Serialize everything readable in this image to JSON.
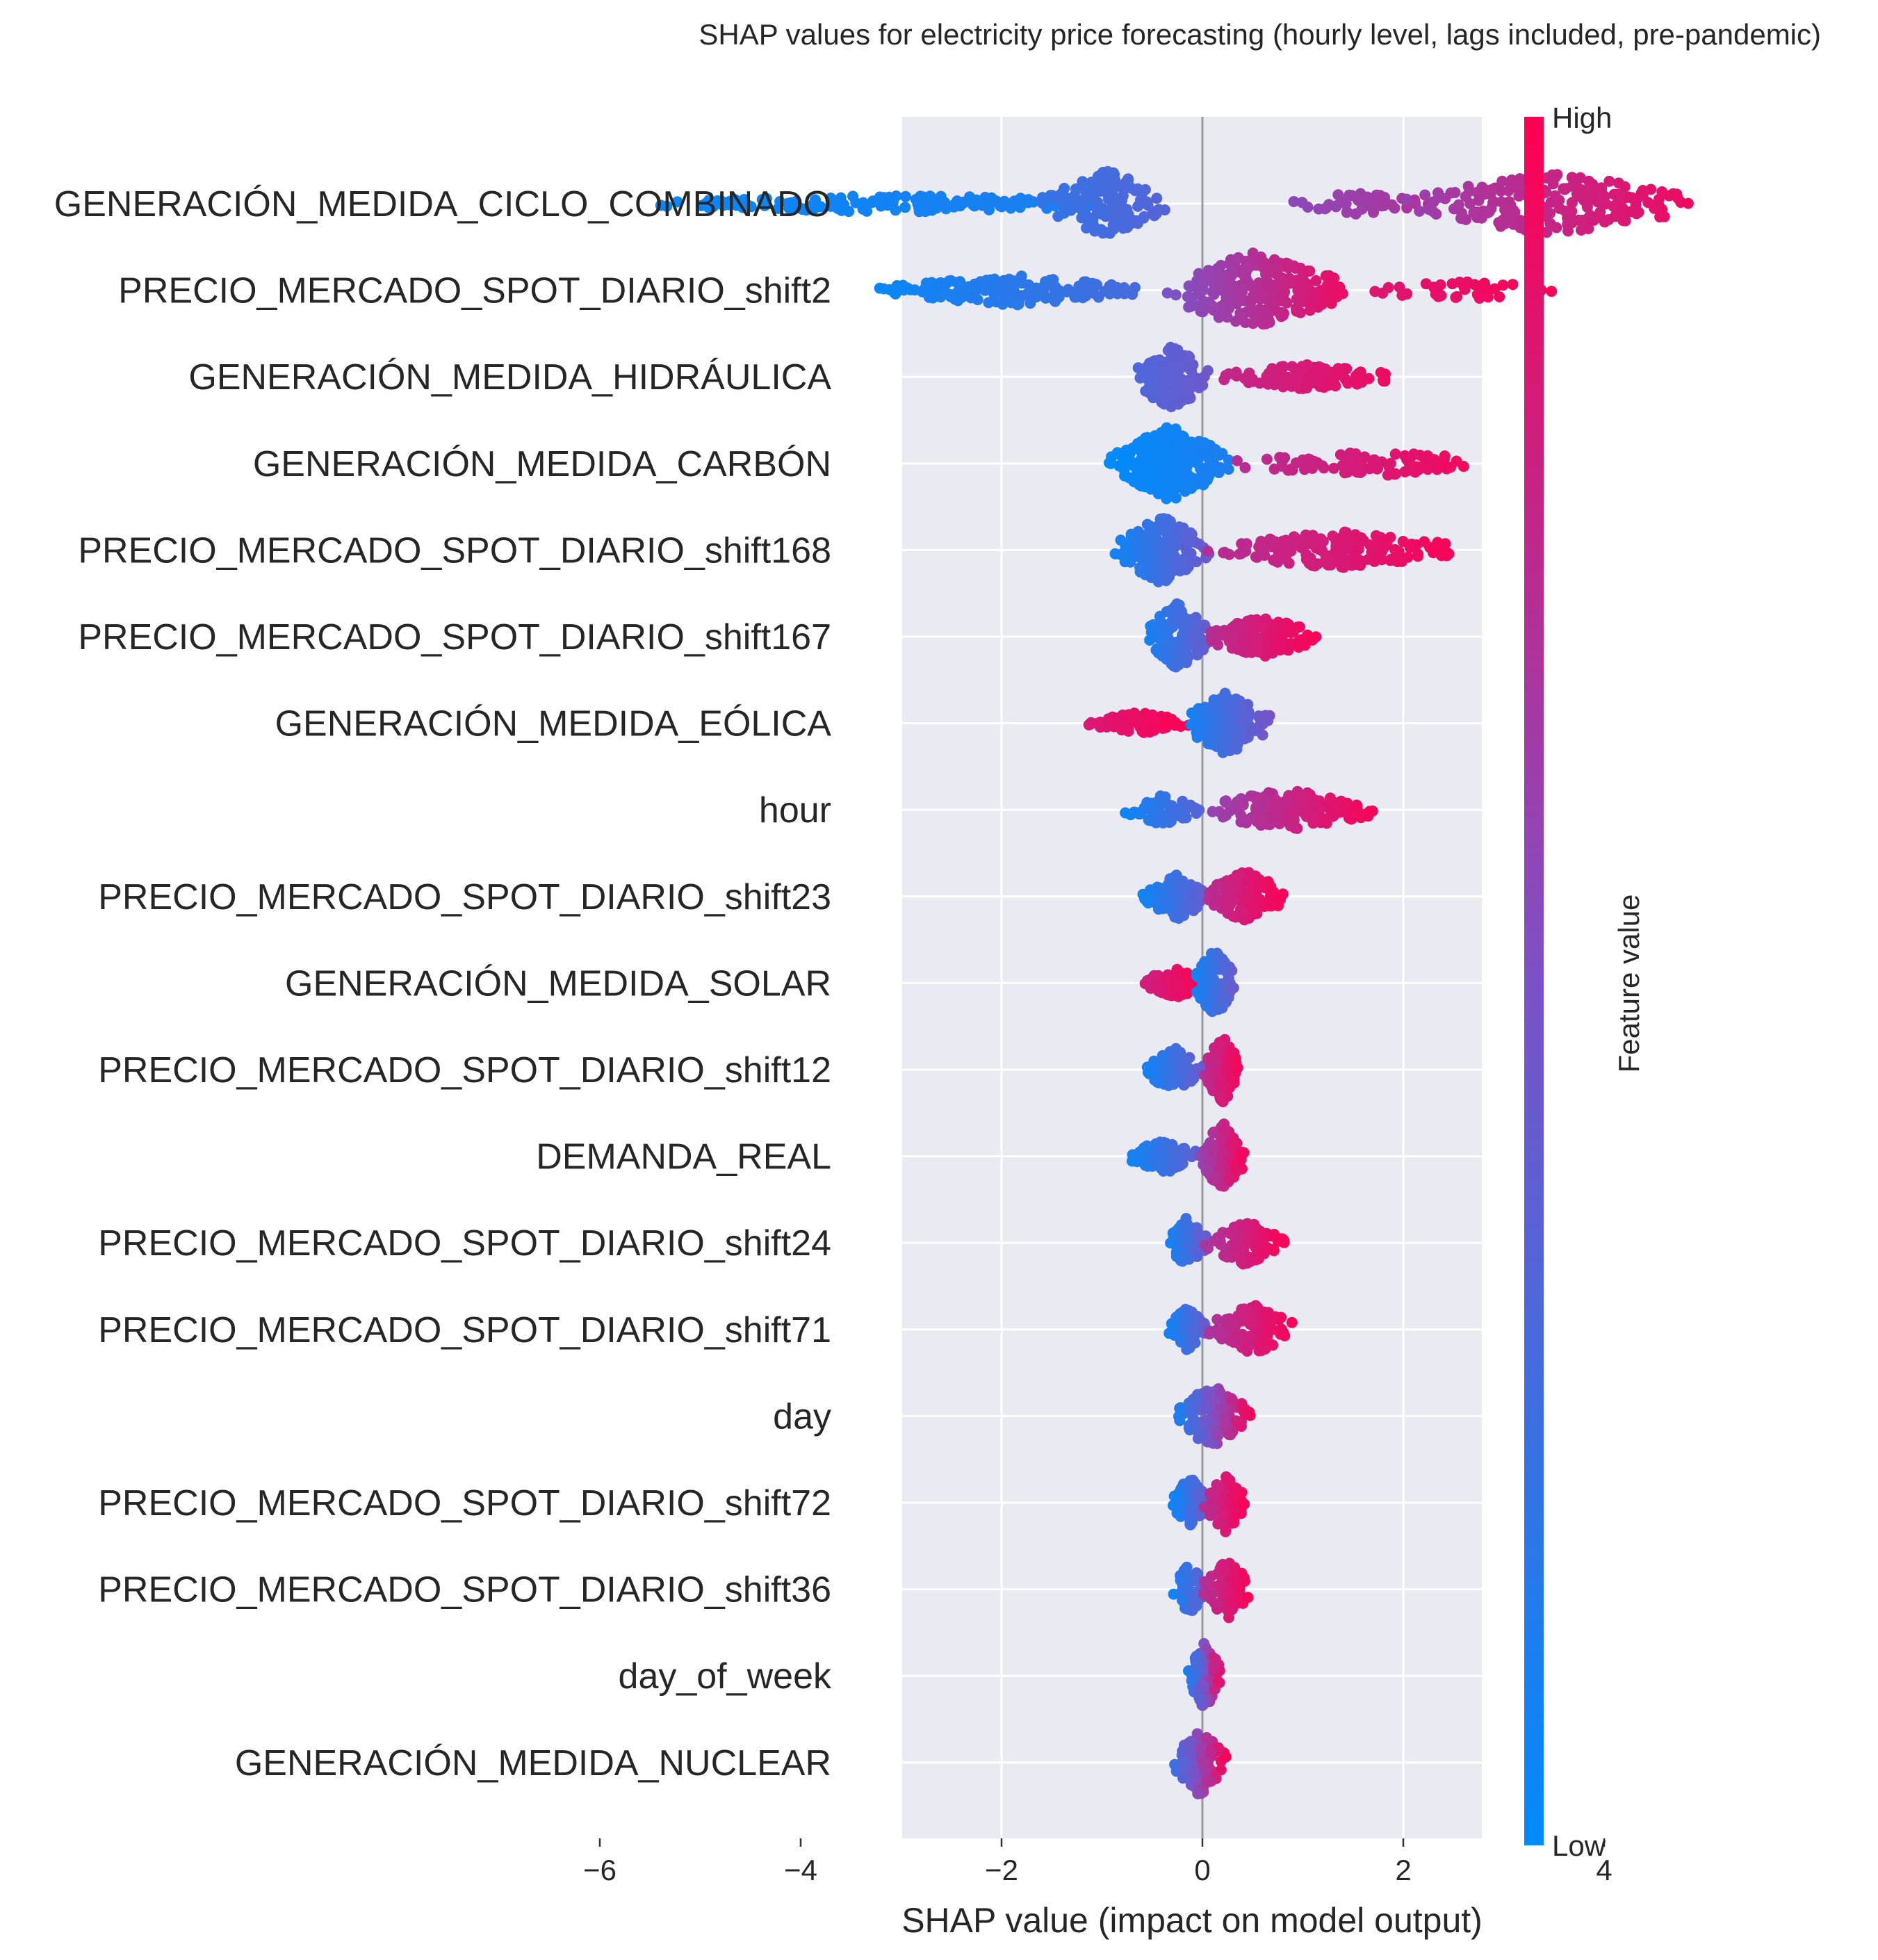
{
  "chart_data": {
    "type": "scatter",
    "subtype": "shap-beeswarm-summary",
    "title": "SHAP values for electricity price forecasting (hourly level, lags included, pre-pandemic)",
    "xlabel": "SHAP value (impact on model output)",
    "xlim": [
      -6.0,
      5.5
    ],
    "xticks": [
      {
        "v": -6,
        "label": "−6"
      },
      {
        "v": -4,
        "label": "−4"
      },
      {
        "v": -2,
        "label": "−2"
      },
      {
        "v": 0,
        "label": "0"
      },
      {
        "v": 2,
        "label": "2"
      },
      {
        "v": 4,
        "label": "4"
      }
    ],
    "grid": true,
    "colorbar": {
      "label": "Feature value",
      "high_label": "High",
      "low_label": "Low",
      "low_color": "#008bfb",
      "mid_color": "#7c52c6",
      "high_color": "#ff0052"
    },
    "features": [
      {
        "name": "GENERACIÓN_MEDIDA_CICLO_COMBINADO",
        "clusters": [
          {
            "min": -5.6,
            "max": -0.6,
            "count": 160,
            "c0": 0.03,
            "c1": 0.12,
            "spread": 0.25
          },
          {
            "min": -1.6,
            "max": -0.3,
            "count": 140,
            "c0": 0.2,
            "c1": 0.35,
            "spread": 0.9
          },
          {
            "min": 0.8,
            "max": 2.3,
            "count": 50,
            "c0": 0.55,
            "c1": 0.7,
            "spread": 0.3
          },
          {
            "min": 2.0,
            "max": 5.0,
            "count": 220,
            "c0": 0.6,
            "c1": 0.95,
            "spread": 0.85
          }
        ]
      },
      {
        "name": "PRECIO_MERCADO_SPOT_DIARIO_shift2",
        "clusters": [
          {
            "min": -3.3,
            "max": -0.5,
            "count": 160,
            "c0": 0.03,
            "c1": 0.3,
            "spread": 0.4
          },
          {
            "min": -0.5,
            "max": 1.5,
            "count": 260,
            "c0": 0.45,
            "c1": 0.95,
            "spread": 1.0
          },
          {
            "min": 1.5,
            "max": 3.7,
            "count": 40,
            "c0": 0.85,
            "c1": 1.0,
            "spread": 0.25
          }
        ]
      },
      {
        "name": "GENERACIÓN_MEDIDA_HIDRÁULICA",
        "clusters": [
          {
            "min": -0.7,
            "max": 0.1,
            "count": 120,
            "c0": 0.3,
            "c1": 0.45,
            "spread": 0.9
          },
          {
            "min": 0.1,
            "max": 2.0,
            "count": 110,
            "c0": 0.75,
            "c1": 0.95,
            "spread": 0.35
          }
        ]
      },
      {
        "name": "GENERACIÓN_MEDIDA_CARBÓN",
        "clusters": [
          {
            "min": -0.95,
            "max": 0.3,
            "count": 240,
            "c0": 0.0,
            "c1": 0.12,
            "spread": 1.0
          },
          {
            "min": 0.2,
            "max": 3.1,
            "count": 90,
            "c0": 0.7,
            "c1": 1.0,
            "spread": 0.35
          }
        ]
      },
      {
        "name": "PRECIO_MERCADO_SPOT_DIARIO_shift168",
        "clusters": [
          {
            "min": -0.9,
            "max": 0.1,
            "count": 160,
            "c0": 0.05,
            "c1": 0.45,
            "spread": 0.9
          },
          {
            "min": 0.0,
            "max": 2.7,
            "count": 170,
            "c0": 0.7,
            "c1": 1.0,
            "spread": 0.5
          }
        ]
      },
      {
        "name": "PRECIO_MERCADO_SPOT_DIARIO_shift167",
        "clusters": [
          {
            "min": -0.6,
            "max": 0.1,
            "count": 140,
            "c0": 0.05,
            "c1": 0.45,
            "spread": 0.9
          },
          {
            "min": 0.0,
            "max": 1.2,
            "count": 140,
            "c0": 0.7,
            "c1": 1.0,
            "spread": 0.55
          }
        ]
      },
      {
        "name": "GENERACIÓN_MEDIDA_EÓLICA",
        "clusters": [
          {
            "min": -1.15,
            "max": -0.1,
            "count": 100,
            "c0": 0.85,
            "c1": 1.0,
            "spread": 0.3
          },
          {
            "min": -0.2,
            "max": 0.7,
            "count": 170,
            "c0": 0.05,
            "c1": 0.5,
            "spread": 0.85
          }
        ]
      },
      {
        "name": "hour",
        "clusters": [
          {
            "min": -0.8,
            "max": 0.0,
            "count": 70,
            "c0": 0.05,
            "c1": 0.35,
            "spread": 0.4
          },
          {
            "min": -0.1,
            "max": 1.8,
            "count": 150,
            "c0": 0.55,
            "c1": 1.0,
            "spread": 0.55
          }
        ]
      },
      {
        "name": "PRECIO_MERCADO_SPOT_DIARIO_shift23",
        "clusters": [
          {
            "min": -0.6,
            "max": 0.1,
            "count": 100,
            "c0": 0.05,
            "c1": 0.45,
            "spread": 0.6
          },
          {
            "min": 0.0,
            "max": 0.85,
            "count": 110,
            "c0": 0.7,
            "c1": 1.0,
            "spread": 0.7
          }
        ]
      },
      {
        "name": "GENERACIÓN_MEDIDA_SOLAR",
        "clusters": [
          {
            "min": -0.6,
            "max": 0.05,
            "count": 90,
            "c0": 0.8,
            "c1": 1.0,
            "spread": 0.4
          },
          {
            "min": -0.1,
            "max": 0.35,
            "count": 110,
            "c0": 0.05,
            "c1": 0.45,
            "spread": 0.9
          }
        ]
      },
      {
        "name": "PRECIO_MERCADO_SPOT_DIARIO_shift12",
        "clusters": [
          {
            "min": -0.6,
            "max": 0.05,
            "count": 90,
            "c0": 0.05,
            "c1": 0.45,
            "spread": 0.6
          },
          {
            "min": 0.0,
            "max": 0.4,
            "count": 120,
            "c0": 0.7,
            "c1": 1.0,
            "spread": 0.9
          }
        ]
      },
      {
        "name": "DEMANDA_REAL",
        "clusters": [
          {
            "min": -0.75,
            "max": 0.0,
            "count": 90,
            "c0": 0.05,
            "c1": 0.4,
            "spread": 0.45
          },
          {
            "min": -0.05,
            "max": 0.45,
            "count": 120,
            "c0": 0.55,
            "c1": 1.0,
            "spread": 0.9
          }
        ]
      },
      {
        "name": "PRECIO_MERCADO_SPOT_DIARIO_shift24",
        "clusters": [
          {
            "min": -0.35,
            "max": 0.05,
            "count": 80,
            "c0": 0.05,
            "c1": 0.45,
            "spread": 0.7
          },
          {
            "min": 0.0,
            "max": 0.85,
            "count": 100,
            "c0": 0.65,
            "c1": 1.0,
            "spread": 0.6
          }
        ]
      },
      {
        "name": "PRECIO_MERCADO_SPOT_DIARIO_shift71",
        "clusters": [
          {
            "min": -0.35,
            "max": 0.05,
            "count": 80,
            "c0": 0.05,
            "c1": 0.45,
            "spread": 0.6
          },
          {
            "min": 0.0,
            "max": 0.95,
            "count": 110,
            "c0": 0.65,
            "c1": 1.0,
            "spread": 0.7
          }
        ]
      },
      {
        "name": "day",
        "clusters": [
          {
            "min": -0.3,
            "max": 0.5,
            "count": 150,
            "c0": 0.05,
            "c1": 1.0,
            "spread": 0.85
          }
        ]
      },
      {
        "name": "PRECIO_MERCADO_SPOT_DIARIO_shift72",
        "clusters": [
          {
            "min": -0.3,
            "max": 0.05,
            "count": 70,
            "c0": 0.05,
            "c1": 0.45,
            "spread": 0.7
          },
          {
            "min": 0.0,
            "max": 0.45,
            "count": 90,
            "c0": 0.7,
            "c1": 1.0,
            "spread": 0.8
          }
        ]
      },
      {
        "name": "PRECIO_MERCADO_SPOT_DIARIO_shift36",
        "clusters": [
          {
            "min": -0.3,
            "max": 0.05,
            "count": 60,
            "c0": 0.05,
            "c1": 0.45,
            "spread": 0.7
          },
          {
            "min": 0.0,
            "max": 0.5,
            "count": 90,
            "c0": 0.7,
            "c1": 1.0,
            "spread": 0.8
          }
        ]
      },
      {
        "name": "day_of_week",
        "clusters": [
          {
            "min": -0.15,
            "max": 0.2,
            "count": 120,
            "c0": 0.05,
            "c1": 1.0,
            "spread": 0.9
          }
        ]
      },
      {
        "name": "GENERACIÓN_MEDIDA_NUCLEAR",
        "clusters": [
          {
            "min": -0.3,
            "max": 0.25,
            "count": 120,
            "c0": 0.2,
            "c1": 1.0,
            "spread": 0.9
          }
        ]
      }
    ]
  }
}
